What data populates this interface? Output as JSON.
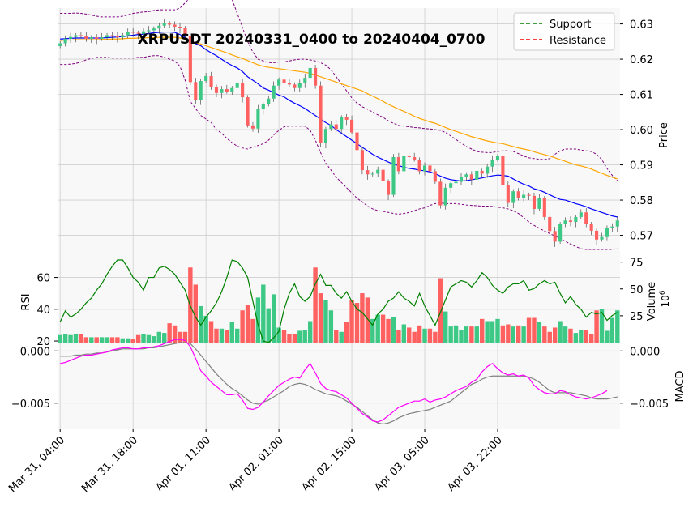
{
  "chart_data": {
    "type": "candlestick",
    "title": "XRPUSDT 20240331_0400 to 20240404_0700",
    "x_tick_labels": [
      "Mar 31, 04:00",
      "Mar 31, 18:00",
      "Apr 01, 11:00",
      "Apr 02, 01:00",
      "Apr 02, 15:00",
      "Apr 03, 05:00",
      "Apr 03, 22:00"
    ],
    "legend": [
      "Support",
      "Resistance"
    ],
    "colors": {
      "up": "#3dc985",
      "down": "#ff6060",
      "support": "#008000",
      "resistance": "#ff0000",
      "ma_fast": "#0000ff",
      "ma_slow": "#ffa500",
      "bollinger": "#800080",
      "rsi": "#008000",
      "macd": "#ff00ff",
      "signal": "#808080"
    },
    "price_panel": {
      "ylabel": "Price",
      "ylim": [
        0.563,
        0.6345
      ],
      "yticks": [
        0.57,
        0.58,
        0.59,
        0.6,
        0.61,
        0.62,
        0.63
      ],
      "ytick_labels": [
        "0.57",
        "0.58",
        "0.59",
        "0.60",
        "0.61",
        "0.62",
        "0.63"
      ],
      "closes": [
        0.6245,
        0.6258,
        0.6263,
        0.6268,
        0.6265,
        0.6258,
        0.6262,
        0.6258,
        0.6262,
        0.6268,
        0.6265,
        0.6262,
        0.6268,
        0.6278,
        0.6275,
        0.6272,
        0.6279,
        0.6282,
        0.6287,
        0.6295,
        0.6302,
        0.6298,
        0.6292,
        0.6288,
        0.6265,
        0.6135,
        0.6085,
        0.6138,
        0.6152,
        0.6122,
        0.6104,
        0.6115,
        0.6108,
        0.6118,
        0.6132,
        0.6092,
        0.6012,
        0.6003,
        0.6058,
        0.6072,
        0.6088,
        0.6125,
        0.6142,
        0.6132,
        0.6128,
        0.6118,
        0.6133,
        0.6147,
        0.6175,
        0.6125,
        0.5962,
        0.6002,
        0.6015,
        0.6002,
        0.6035,
        0.6028,
        0.5992,
        0.5942,
        0.5885,
        0.5873,
        0.5875,
        0.5886,
        0.5853,
        0.5815,
        0.5922,
        0.5882,
        0.5925,
        0.5922,
        0.5915,
        0.5882,
        0.5898,
        0.5882,
        0.5852,
        0.5785,
        0.5835,
        0.5848,
        0.5852,
        0.5865,
        0.5873,
        0.5858,
        0.5883,
        0.5875,
        0.5895,
        0.5915,
        0.5925,
        0.5842,
        0.5792,
        0.5825,
        0.5805,
        0.5815,
        0.5812,
        0.5775,
        0.5805,
        0.5752,
        0.5712,
        0.5682,
        0.5732,
        0.5742,
        0.5738,
        0.5752,
        0.5765,
        0.5732,
        0.5713,
        0.5688,
        0.5695,
        0.5722,
        0.5725,
        0.5742
      ],
      "fast_ma": [
        0.6257,
        0.6258,
        0.6259,
        0.626,
        0.626,
        0.626,
        0.626,
        0.626,
        0.626,
        0.6261,
        0.6262,
        0.6263,
        0.6264,
        0.6266,
        0.6268,
        0.627,
        0.6271,
        0.6273,
        0.6275,
        0.6276,
        0.6277,
        0.6277,
        0.6276,
        0.627,
        0.6262,
        0.625,
        0.6244,
        0.6238,
        0.6227,
        0.6218,
        0.621,
        0.62,
        0.619,
        0.6182,
        0.6175,
        0.6165,
        0.615,
        0.614,
        0.613,
        0.6118,
        0.6112,
        0.6105,
        0.6098,
        0.6093,
        0.6083,
        0.6075,
        0.6068,
        0.606,
        0.605,
        0.604,
        0.603,
        0.602,
        0.6012,
        0.6,
        0.599,
        0.598,
        0.597,
        0.596,
        0.595,
        0.594,
        0.593,
        0.5922,
        0.5915,
        0.5908,
        0.5902,
        0.5898,
        0.5893,
        0.589,
        0.5888,
        0.5885,
        0.5883,
        0.588,
        0.5875,
        0.5868,
        0.5862,
        0.5858,
        0.5856,
        0.5854,
        0.5855,
        0.5858,
        0.586,
        0.5863,
        0.5866,
        0.5869,
        0.5871,
        0.587,
        0.5868,
        0.586,
        0.5852,
        0.5845,
        0.584,
        0.5832,
        0.5828,
        0.5822,
        0.5815,
        0.5808,
        0.5802,
        0.58,
        0.5795,
        0.579,
        0.5786,
        0.5781,
        0.5775,
        0.577,
        0.5765,
        0.576,
        0.5755,
        0.5752
      ],
      "slow_ma": [
        0.6253,
        0.6254,
        0.6254,
        0.6255,
        0.6255,
        0.6255,
        0.6255,
        0.6255,
        0.6256,
        0.6256,
        0.6257,
        0.6257,
        0.6258,
        0.6259,
        0.6259,
        0.626,
        0.626,
        0.6261,
        0.6261,
        0.6262,
        0.6262,
        0.6262,
        0.6262,
        0.626,
        0.6256,
        0.625,
        0.6246,
        0.6243,
        0.6238,
        0.6233,
        0.6228,
        0.6223,
        0.6218,
        0.6212,
        0.6207,
        0.6202,
        0.6196,
        0.619,
        0.6184,
        0.618,
        0.6177,
        0.6175,
        0.6173,
        0.6171,
        0.6169,
        0.6167,
        0.6165,
        0.6163,
        0.616,
        0.6155,
        0.615,
        0.6145,
        0.614,
        0.6135,
        0.613,
        0.6125,
        0.612,
        0.6115,
        0.611,
        0.6102,
        0.6095,
        0.6088,
        0.608,
        0.6072,
        0.6065,
        0.6058,
        0.6052,
        0.6045,
        0.6038,
        0.6032,
        0.6027,
        0.6022,
        0.6018,
        0.6012,
        0.6006,
        0.6,
        0.5995,
        0.599,
        0.5985,
        0.598,
        0.5976,
        0.5972,
        0.5968,
        0.5965,
        0.5962,
        0.596,
        0.5956,
        0.5952,
        0.5948,
        0.5945,
        0.5942,
        0.5937,
        0.5933,
        0.5929,
        0.5925,
        0.592,
        0.5915,
        0.591,
        0.5905,
        0.59,
        0.5897,
        0.5893,
        0.5888,
        0.5882,
        0.5876,
        0.587,
        0.5865,
        0.586
      ],
      "bb_upper": [
        0.633,
        0.633,
        0.633,
        0.6331,
        0.633,
        0.6328,
        0.6325,
        0.6322,
        0.632,
        0.632,
        0.632,
        0.632,
        0.6322,
        0.6326,
        0.633,
        0.6332,
        0.6334,
        0.6335,
        0.6338,
        0.634,
        0.634,
        0.634,
        0.634,
        0.6345,
        0.636,
        0.641,
        0.645,
        0.647,
        0.648,
        0.647,
        0.646,
        0.644,
        0.641,
        0.637,
        0.633,
        0.629,
        0.625,
        0.622,
        0.62,
        0.6195,
        0.619,
        0.619,
        0.6192,
        0.6192,
        0.6195,
        0.6198,
        0.62,
        0.62,
        0.6198,
        0.6195,
        0.619,
        0.6183,
        0.617,
        0.615,
        0.613,
        0.611,
        0.609,
        0.6075,
        0.6065,
        0.6058,
        0.605,
        0.6042,
        0.6035,
        0.6025,
        0.6018,
        0.6012,
        0.601,
        0.6008,
        0.6006,
        0.6005,
        0.6003,
        0.6002,
        0.6,
        0.5998,
        0.5992,
        0.5982,
        0.5972,
        0.5962,
        0.5952,
        0.5945,
        0.5938,
        0.5936,
        0.5935,
        0.5935,
        0.5938,
        0.594,
        0.594,
        0.5938,
        0.5932,
        0.5925,
        0.592,
        0.5918,
        0.5916,
        0.5915,
        0.5918,
        0.593,
        0.594,
        0.5945,
        0.5945,
        0.5945,
        0.5942,
        0.594,
        0.5938,
        0.593,
        0.5915,
        0.589,
        0.587,
        0.5855
      ],
      "bb_lower": [
        0.6185,
        0.6185,
        0.6186,
        0.6188,
        0.6192,
        0.6198,
        0.6202,
        0.6205,
        0.6205,
        0.6205,
        0.6203,
        0.6203,
        0.6203,
        0.6203,
        0.6203,
        0.6205,
        0.6205,
        0.6208,
        0.621,
        0.621,
        0.6205,
        0.62,
        0.6195,
        0.618,
        0.614,
        0.608,
        0.606,
        0.604,
        0.603,
        0.602,
        0.6,
        0.599,
        0.5975,
        0.5963,
        0.5953,
        0.5948,
        0.5945,
        0.595,
        0.5955,
        0.596,
        0.597,
        0.5985,
        0.5998,
        0.6008,
        0.601,
        0.601,
        0.601,
        0.601,
        0.5998,
        0.597,
        0.5935,
        0.5905,
        0.5885,
        0.5865,
        0.585,
        0.5835,
        0.582,
        0.5805,
        0.5795,
        0.5783,
        0.5775,
        0.577,
        0.5768,
        0.5765,
        0.5762,
        0.576,
        0.5762,
        0.5765,
        0.577,
        0.5775,
        0.5778,
        0.5785,
        0.579,
        0.5792,
        0.579,
        0.579,
        0.579,
        0.5788,
        0.5786,
        0.5785,
        0.5784,
        0.5783,
        0.5783,
        0.5782,
        0.578,
        0.5778,
        0.5775,
        0.577,
        0.5762,
        0.575,
        0.5738,
        0.5728,
        0.572,
        0.5712,
        0.5705,
        0.5698,
        0.569,
        0.5683,
        0.5675,
        0.5668,
        0.5662,
        0.566,
        0.566,
        0.566,
        0.566,
        0.566,
        0.566,
        0.5662
      ]
    },
    "rsi_panel": {
      "ylabel": "RSI",
      "ylim": [
        19,
        71
      ],
      "yticks": [
        20,
        40,
        60
      ],
      "ytick_labels": [
        "20",
        "40",
        "60"
      ],
      "values": [
        32,
        39,
        35,
        37,
        40,
        44,
        47,
        52,
        56,
        62,
        67,
        75,
        75,
        66,
        60,
        57,
        52,
        60,
        60,
        66,
        67,
        65,
        62,
        57,
        52,
        42,
        35,
        30,
        35,
        39,
        44,
        51,
        60,
        71,
        70,
        66,
        60,
        45,
        30,
        20,
        18,
        22,
        26,
        40,
        50,
        56,
        48,
        45,
        48,
        56,
        62,
        55,
        55,
        50,
        47,
        51,
        45,
        40,
        38,
        34,
        30,
        37,
        40,
        45,
        47,
        51,
        47,
        45,
        42,
        50,
        42,
        36,
        30,
        38,
        46,
        54,
        56,
        58,
        57,
        54,
        58,
        63,
        60,
        55,
        52,
        50,
        54,
        56,
        56,
        58,
        52,
        53,
        56,
        58,
        56,
        57,
        50,
        44,
        48,
        43,
        40,
        35,
        38,
        37,
        38,
        33,
        36,
        38
      ]
    },
    "volume_panel": {
      "ylabel": "Volume",
      "unit_label": "10^6",
      "ylim": [
        0,
        77
      ],
      "yticks": [
        25,
        50,
        75
      ],
      "ytick_labels": [
        "25",
        "50",
        "75"
      ],
      "values": [
        7,
        8,
        7,
        8,
        8,
        5,
        5,
        5,
        5,
        5,
        5,
        5,
        4,
        4,
        3,
        7,
        8,
        7,
        6,
        10,
        9,
        18,
        16,
        10,
        10,
        70,
        54,
        34,
        25,
        20,
        13,
        13,
        12,
        19,
        13,
        30,
        35,
        22,
        42,
        54,
        32,
        45,
        14,
        12,
        8,
        8,
        11,
        12,
        20,
        70,
        46,
        40,
        30,
        12,
        10,
        19,
        40,
        37,
        46,
        42,
        22,
        26,
        26,
        22,
        24,
        12,
        17,
        14,
        10,
        16,
        13,
        13,
        10,
        60,
        29,
        15,
        16,
        12,
        15,
        15,
        15,
        22,
        20,
        20,
        22,
        16,
        17,
        15,
        16,
        15,
        23,
        23,
        19,
        15,
        10,
        14,
        20,
        15,
        13,
        9,
        12,
        12,
        8,
        30,
        31,
        11,
        23,
        30
      ]
    },
    "macd_panel": {
      "ylabel": "MACD",
      "ylim": [
        -0.0075,
        0.0008
      ],
      "yticks": [
        0.0,
        -0.005
      ],
      "ytick_labels": [
        "0.000",
        "−0.005"
      ],
      "macd": [
        -0.0012,
        -0.0011,
        -0.0009,
        -0.0007,
        -0.0005,
        -0.0004,
        -0.0004,
        -0.0003,
        -0.0002,
        -0.0001,
        0.0001,
        0.0002,
        0.0003,
        0.0003,
        0.0002,
        0.0002,
        0.0003,
        0.0003,
        0.0004,
        0.0005,
        0.0007,
        0.0009,
        0.0011,
        0.0011,
        0.001,
        0.0004,
        -0.0007,
        -0.0019,
        -0.0024,
        -0.003,
        -0.0034,
        -0.0038,
        -0.0042,
        -0.0042,
        -0.0041,
        -0.0047,
        -0.0055,
        -0.0056,
        -0.0054,
        -0.0049,
        -0.0043,
        -0.0038,
        -0.0033,
        -0.003,
        -0.0027,
        -0.0025,
        -0.0026,
        -0.0018,
        -0.0012,
        -0.0021,
        -0.0031,
        -0.0036,
        -0.0038,
        -0.0039,
        -0.0042,
        -0.0045,
        -0.005,
        -0.0055,
        -0.006,
        -0.0063,
        -0.0067,
        -0.0068,
        -0.0066,
        -0.0062,
        -0.0058,
        -0.0054,
        -0.0052,
        -0.005,
        -0.0048,
        -0.0048,
        -0.0046,
        -0.0049,
        -0.0047,
        -0.0046,
        -0.0044,
        -0.0041,
        -0.0038,
        -0.0036,
        -0.0034,
        -0.003,
        -0.0027,
        -0.002,
        -0.0015,
        -0.0012,
        -0.0017,
        -0.0021,
        -0.0023,
        -0.0022,
        -0.0024,
        -0.0023,
        -0.0026,
        -0.0033,
        -0.0037,
        -0.004,
        -0.0041,
        -0.0041,
        -0.0038,
        -0.0039,
        -0.0042,
        -0.0044,
        -0.0045,
        -0.0046,
        -0.0045,
        -0.0043,
        -0.0041,
        -0.0038
      ],
      "signal": [
        -0.0005,
        -0.0005,
        -0.0005,
        -0.0004,
        -0.0004,
        -0.0003,
        -0.0003,
        -0.0002,
        -0.0002,
        -0.0001,
        0.0,
        0.0001,
        0.0002,
        0.0002,
        0.0002,
        0.0002,
        0.0002,
        0.0003,
        0.0003,
        0.0004,
        0.0005,
        0.0006,
        0.0007,
        0.0008,
        0.0008,
        0.0007,
        0.0002,
        -0.0004,
        -0.001,
        -0.0016,
        -0.0022,
        -0.0027,
        -0.0032,
        -0.0036,
        -0.0039,
        -0.0043,
        -0.0047,
        -0.005,
        -0.0051,
        -0.0049,
        -0.0047,
        -0.0044,
        -0.0041,
        -0.0038,
        -0.0034,
        -0.0032,
        -0.0031,
        -0.0032,
        -0.0034,
        -0.0037,
        -0.0039,
        -0.0041,
        -0.0042,
        -0.0043,
        -0.0045,
        -0.0048,
        -0.0051,
        -0.0054,
        -0.0058,
        -0.0062,
        -0.0066,
        -0.0069,
        -0.007,
        -0.0069,
        -0.0067,
        -0.0064,
        -0.0062,
        -0.006,
        -0.0059,
        -0.0058,
        -0.0057,
        -0.0056,
        -0.0054,
        -0.0052,
        -0.005,
        -0.0048,
        -0.0044,
        -0.004,
        -0.0036,
        -0.0032,
        -0.003,
        -0.0027,
        -0.0025,
        -0.0024,
        -0.0024,
        -0.0024,
        -0.0024,
        -0.0024,
        -0.0024,
        -0.0024,
        -0.0025,
        -0.0027,
        -0.003,
        -0.0034,
        -0.0038,
        -0.004,
        -0.004,
        -0.004,
        -0.004,
        -0.0041,
        -0.0042,
        -0.0043,
        -0.0045,
        -0.0046,
        -0.0046,
        -0.0046,
        -0.0045,
        -0.0044
      ]
    }
  }
}
